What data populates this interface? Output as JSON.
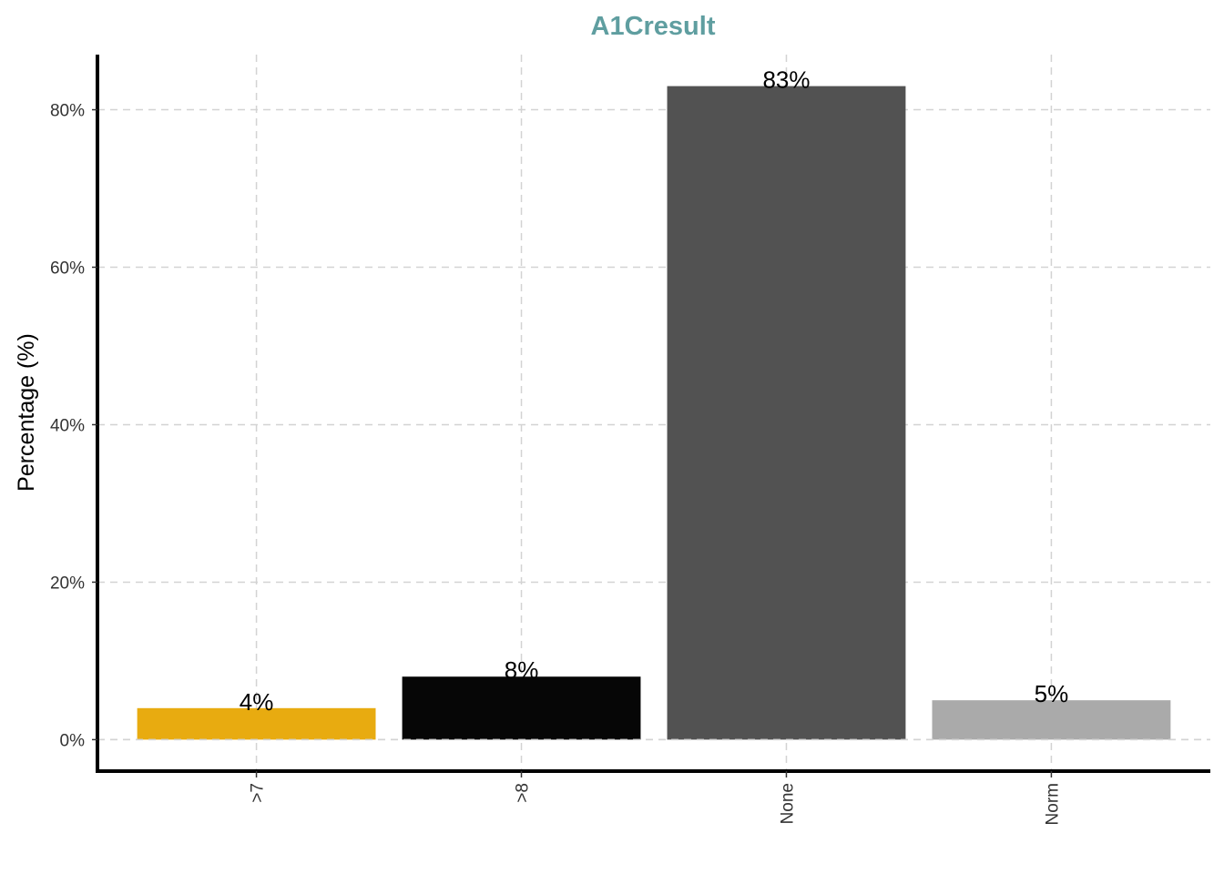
{
  "chart_data": {
    "type": "bar",
    "title": "A1Cresult",
    "title_color": "#5f9ea0",
    "xlabel": "",
    "ylabel": "Percentage (%)",
    "categories": [
      ">7",
      ">8",
      "None",
      "Norm"
    ],
    "values": [
      4,
      8,
      83,
      5
    ],
    "data_labels": [
      "4%",
      "8%",
      "83%",
      "5%"
    ],
    "bar_colors": [
      "#e8ab10",
      "#060606",
      "#525252",
      "#aaaaaa"
    ],
    "ylim": [
      -4,
      87
    ],
    "yticks": [
      0,
      20,
      40,
      60,
      80
    ],
    "ytick_labels": [
      "0%",
      "20%",
      "40%",
      "60%",
      "80%"
    ],
    "grid": true,
    "legend": "none"
  }
}
